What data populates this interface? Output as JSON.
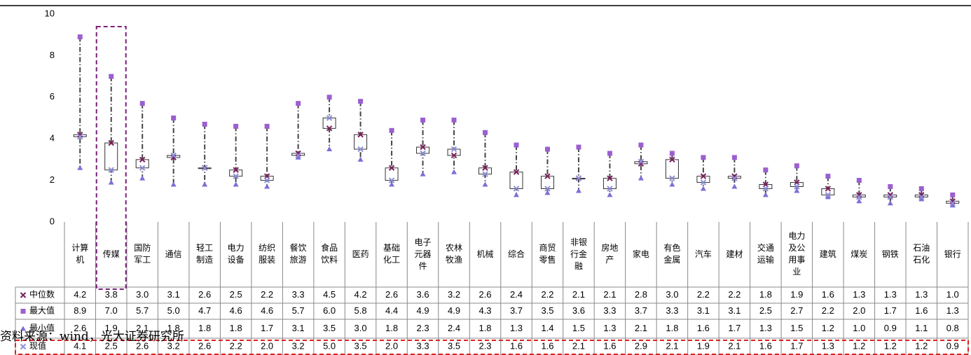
{
  "chart_data": {
    "type": "range",
    "source": "资料来源：wind，光大证券研究所",
    "categories": [
      "计算机",
      "传媒",
      "国防军工",
      "通信",
      "轻工制造",
      "电力设备",
      "纺织服装",
      "餐饮旅游",
      "食品饮料",
      "医药",
      "基础化工",
      "电子元器件",
      "农林牧渔",
      "机械",
      "综合",
      "商贸零售",
      "非银行金融",
      "房地产",
      "家电",
      "有色金属",
      "汽车",
      "建材",
      "交通运输",
      "电力及公用事业",
      "建筑",
      "煤炭",
      "钢铁",
      "石油石化",
      "银行"
    ],
    "ylim": [
      0,
      10
    ],
    "yticks": [
      0,
      2,
      4,
      6,
      8,
      10
    ],
    "series": [
      {
        "name": "中位数",
        "color": "#7a1f5c",
        "values": [
          4.2,
          3.8,
          3.0,
          3.1,
          2.6,
          2.5,
          2.2,
          3.3,
          4.5,
          4.2,
          2.6,
          3.6,
          3.2,
          2.6,
          2.4,
          2.2,
          2.1,
          2.1,
          2.8,
          3.0,
          2.2,
          2.2,
          1.8,
          1.9,
          1.6,
          1.3,
          1.3,
          1.3,
          1.0
        ],
        "value_labels": [
          "4.2",
          "3.8",
          "3.0",
          "3.1",
          "2.6",
          "2.5",
          "2.2",
          "3.3",
          "4.5",
          "4.2",
          "2.6",
          "3.6",
          "3.2",
          "2.6",
          "2.4",
          "2.2",
          "2.1",
          "2.1",
          "2.8",
          "3.0",
          "2.2",
          "2.2",
          "1.8",
          "1.9",
          "1.6",
          "1.3",
          "1.3",
          "1.3",
          "1.0"
        ]
      },
      {
        "name": "最大值",
        "color": "#9b5fd0",
        "values": [
          8.9,
          7.0,
          5.7,
          5.0,
          4.7,
          4.6,
          4.6,
          5.7,
          6.0,
          5.8,
          4.4,
          4.9,
          4.9,
          4.3,
          3.7,
          3.5,
          3.6,
          3.3,
          3.7,
          3.3,
          3.1,
          3.1,
          2.5,
          2.7,
          2.2,
          2.0,
          1.7,
          1.6,
          1.3
        ],
        "value_labels": [
          "8.9",
          "7.0",
          "5.7",
          "5.0",
          "4.7",
          "4.6",
          "4.6",
          "5.7",
          "6.0",
          "5.8",
          "4.4",
          "4.9",
          "4.9",
          "4.3",
          "3.7",
          "3.5",
          "3.6",
          "3.3",
          "3.7",
          "3.3",
          "3.1",
          "3.1",
          "2.5",
          "2.7",
          "2.2",
          "2.0",
          "1.7",
          "1.6",
          "1.3"
        ]
      },
      {
        "name": "最小值",
        "color": "#7b6fd6",
        "values": [
          2.6,
          1.9,
          2.1,
          1.8,
          1.8,
          1.8,
          1.7,
          3.1,
          3.5,
          3.0,
          1.8,
          2.3,
          2.4,
          1.8,
          1.3,
          1.4,
          1.5,
          1.3,
          2.1,
          1.8,
          1.6,
          1.7,
          1.3,
          1.5,
          1.2,
          1.0,
          0.9,
          1.1,
          0.8
        ],
        "value_labels": [
          "2.6",
          "1.9",
          "2.1",
          "1.8",
          "1.8",
          "1.8",
          "1.7",
          "3.1",
          "3.5",
          "3.0",
          "1.8",
          "2.3",
          "2.4",
          "1.8",
          "1.3",
          "1.4",
          "1.5",
          "1.3",
          "2.1",
          "1.8",
          "1.6",
          "1.7",
          "1.3",
          "1.5",
          "1.2",
          "1.0",
          "0.9",
          "1.1",
          "0.8"
        ]
      },
      {
        "name": "现值",
        "color": "#8f8fdb",
        "values": [
          4.1,
          2.5,
          2.6,
          3.2,
          2.6,
          2.2,
          2.0,
          3.2,
          5.0,
          3.5,
          2.0,
          3.3,
          3.5,
          2.3,
          1.6,
          1.6,
          2.1,
          1.6,
          2.9,
          2.1,
          1.9,
          2.1,
          1.6,
          1.7,
          1.3,
          1.2,
          1.2,
          1.2,
          0.9
        ],
        "value_labels": [
          "4.1",
          "2.5",
          "2.6",
          "3.2",
          "2.6",
          "2.2",
          "2.0",
          "3.2",
          "5.0",
          "3.5",
          "2.0",
          "3.3",
          "3.5",
          "2.3",
          "1.6",
          "1.6",
          "2.1",
          "1.6",
          "2.9",
          "2.1",
          "1.9",
          "2.1",
          "1.6",
          "1.7",
          "1.3",
          "1.2",
          "1.2",
          "1.2",
          "0.9"
        ]
      }
    ]
  }
}
